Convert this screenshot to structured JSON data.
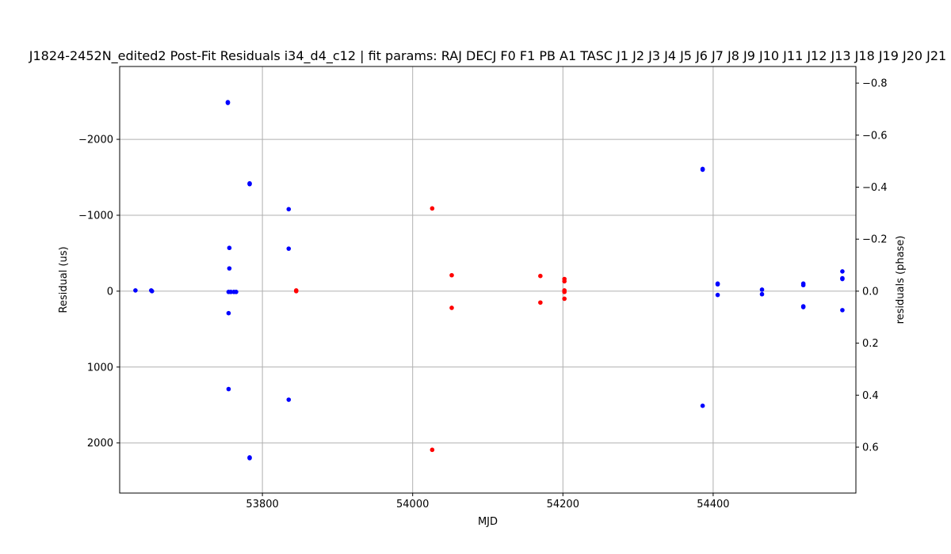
{
  "chart_data": {
    "type": "scatter",
    "title": "J1824-2452N_edited2 Post-Fit Residuals i34_d4_c12 | fit params: RAJ DECJ F0 F1 PB A1 TASC J1 J2 J3 J4 J5 J6 J7 J8 J9 J10 J11 J12 J13 J18 J19 J20 J21",
    "xlabel": "MJD",
    "ylabel": "Residual (us)",
    "y2label": "residuals (phase)",
    "xlim": [
      53610,
      54590
    ],
    "ylim": [
      2660,
      -2960
    ],
    "y2lim": [
      0.7765,
      -0.8641
    ],
    "y_inverted": true,
    "grid": true,
    "x_ticks": [
      53800,
      54000,
      54200,
      54400
    ],
    "x_tick_labels": [
      "53800",
      "54000",
      "54200",
      "54400"
    ],
    "y_ticks": [
      -2000,
      -1000,
      0,
      1000,
      2000
    ],
    "y_tick_labels": [
      "−2000",
      "−1000",
      "0",
      "1000",
      "2000"
    ],
    "y2_ticks": [
      -0.8,
      -0.6,
      -0.4,
      -0.2,
      0.0,
      0.2,
      0.4,
      0.6
    ],
    "y2_tick_labels": [
      "−0.8",
      "−0.6",
      "−0.4",
      "−0.2",
      "0.0",
      "0.2",
      "0.4",
      "0.6"
    ],
    "series": [
      {
        "color": "#0000ff",
        "points": [
          [
            53631,
            -10
          ],
          [
            53652,
            -10
          ],
          [
            53653,
            0
          ],
          [
            53754,
            -2490
          ],
          [
            53754,
            -2480
          ],
          [
            53756,
            -570
          ],
          [
            53756,
            -300
          ],
          [
            53755,
            10
          ],
          [
            53758,
            10
          ],
          [
            53762,
            10
          ],
          [
            53765,
            10
          ],
          [
            53755,
            290
          ],
          [
            53755,
            1290
          ],
          [
            53783,
            -1420
          ],
          [
            53783,
            -1410
          ],
          [
            53783,
            2190
          ],
          [
            53783,
            2200
          ],
          [
            53835,
            -1080
          ],
          [
            53835,
            -560
          ],
          [
            53835,
            1430
          ],
          [
            54386,
            -1610
          ],
          [
            54386,
            -1600
          ],
          [
            54386,
            1510
          ],
          [
            54406,
            -100
          ],
          [
            54406,
            -90
          ],
          [
            54406,
            50
          ],
          [
            54465,
            -20
          ],
          [
            54465,
            40
          ],
          [
            54520,
            -100
          ],
          [
            54520,
            -80
          ],
          [
            54520,
            200
          ],
          [
            54520,
            210
          ],
          [
            54572,
            -260
          ],
          [
            54572,
            -170
          ],
          [
            54572,
            -160
          ],
          [
            54572,
            250
          ]
        ]
      },
      {
        "color": "#ff0000",
        "points": [
          [
            53845,
            -10
          ],
          [
            53845,
            0
          ],
          [
            54026,
            -1090
          ],
          [
            54026,
            2090
          ],
          [
            54052,
            -210
          ],
          [
            54052,
            220
          ],
          [
            54170,
            -200
          ],
          [
            54170,
            150
          ],
          [
            54202,
            -160
          ],
          [
            54202,
            -130
          ],
          [
            54202,
            -10
          ],
          [
            54202,
            10
          ],
          [
            54202,
            100
          ]
        ]
      }
    ]
  }
}
